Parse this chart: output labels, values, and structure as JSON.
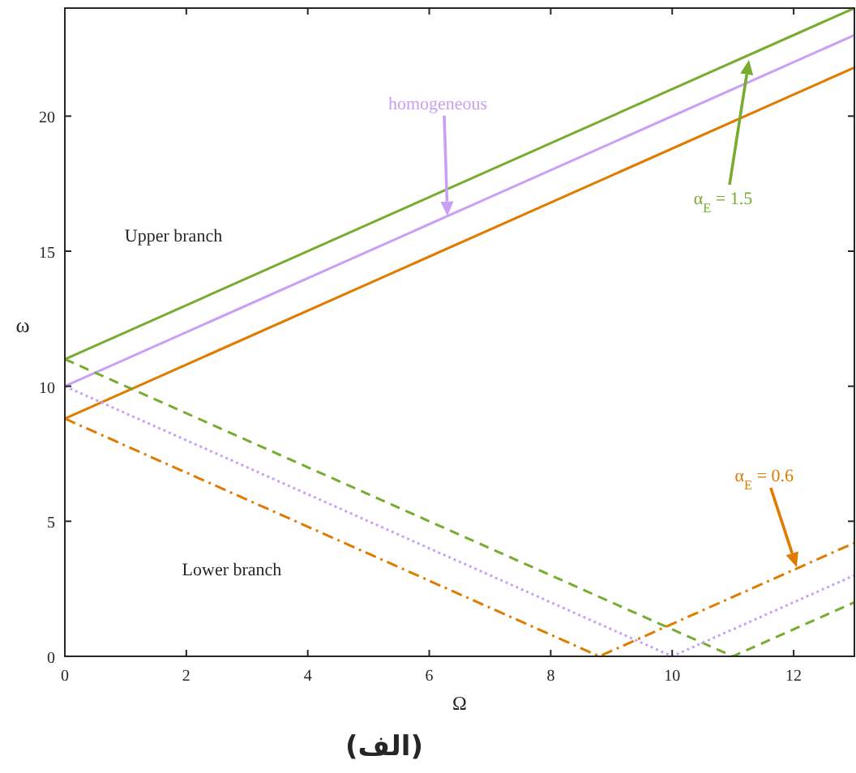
{
  "chart_data": {
    "type": "line",
    "xlabel": "Ω",
    "ylabel": "ω",
    "xlim": [
      0,
      13
    ],
    "ylim": [
      0,
      24
    ],
    "xticks": [
      0,
      2,
      4,
      6,
      8,
      10,
      12
    ],
    "yticks": [
      0,
      5,
      10,
      15,
      20
    ],
    "grid": false,
    "series": [
      {
        "color": "#77ac30",
        "line_style": "solid",
        "x": [
          0,
          13
        ],
        "values": [
          11,
          24
        ]
      },
      {
        "color": "#c9a0f5",
        "line_style": "solid",
        "x": [
          0,
          13
        ],
        "values": [
          10,
          23
        ]
      },
      {
        "color": "#e07b00",
        "line_style": "solid",
        "x": [
          0,
          13
        ],
        "values": [
          8.8,
          21.8
        ]
      },
      {
        "color": "#77ac30",
        "line_style": "dashed",
        "x": [
          0,
          11,
          13
        ],
        "values": [
          11,
          0,
          2
        ]
      },
      {
        "color": "#c9a0f5",
        "line_style": "dotted",
        "x": [
          0,
          10,
          13
        ],
        "values": [
          10,
          0,
          3
        ]
      },
      {
        "color": "#e07b00",
        "line_style": "dashdot",
        "x": [
          0,
          8.8,
          13
        ],
        "values": [
          8.8,
          0,
          4.2
        ]
      }
    ],
    "annotations": [
      "Upper branch",
      "Lower branch",
      {
        "text": "homogeneous",
        "x": 6.3,
        "y": 16.3
      },
      "α$_{E}$ = 1.5",
      {
        "text": "α$_{E}$ = 0.6",
        "x": 12.05,
        "y": 3.3
      },
      "(الف)"
    ]
  }
}
